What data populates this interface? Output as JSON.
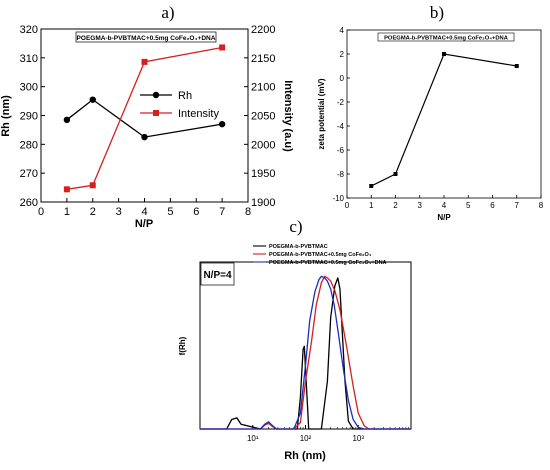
{
  "chart_data": [
    {
      "panel": "a)",
      "type": "line",
      "box_title": "POEGMA-b-PVBTMAC+0.5mg CoFe₂O₄+DNA",
      "xlabel": "N/P",
      "ylabel_left": "Rh (nm)",
      "ylabel_right": "Intensity (a.u)",
      "xlim": [
        0,
        8
      ],
      "ylim_left": [
        260,
        320
      ],
      "ylim_right": [
        1900,
        2200
      ],
      "xticks": [
        "0",
        "1",
        "2",
        "3",
        "4",
        "5",
        "6",
        "7",
        "8"
      ],
      "yticks_left": [
        "260",
        "270",
        "280",
        "290",
        "300",
        "310",
        "320"
      ],
      "yticks_right": [
        "1900",
        "1950",
        "2000",
        "2050",
        "2100",
        "2150",
        "2200"
      ],
      "legend_position": "right",
      "series": [
        {
          "name": "Rh",
          "axis": "left",
          "color": "#000000",
          "marker": "circle",
          "x": [
            1,
            2,
            4,
            7
          ],
          "y": [
            288.5,
            295.5,
            282.5,
            287.0
          ]
        },
        {
          "name": "Intensity",
          "axis": "right",
          "color": "#d42020",
          "marker": "square",
          "x": [
            1,
            2,
            4,
            7
          ],
          "y": [
            1922,
            1929,
            2143,
            2168
          ]
        }
      ]
    },
    {
      "panel": "b)",
      "type": "line",
      "box_title": "POEGMA-b-PVBTMAC+0.5mg CoFe₂O₄+DNA",
      "xlabel": "N/P",
      "ylabel": "zeta potential (mV)",
      "xlim": [
        0,
        8
      ],
      "ylim": [
        -10,
        4
      ],
      "xticks": [
        "0",
        "1",
        "2",
        "3",
        "4",
        "5",
        "6",
        "7",
        "8"
      ],
      "yticks": [
        "-10",
        "-8",
        "-6",
        "-4",
        "-2",
        "0",
        "2",
        "4"
      ],
      "series": [
        {
          "color": "#000000",
          "marker": "square",
          "x": [
            1,
            2,
            4,
            7
          ],
          "y": [
            -9.0,
            -8.0,
            2.0,
            1.0
          ]
        }
      ]
    },
    {
      "panel": "c)",
      "type": "line",
      "annotation": "N/P=4",
      "xlabel": "Rh (nm)",
      "ylabel": "f(Rh)",
      "xscale": "log",
      "xlim": [
        1,
        10000
      ],
      "ylim": [
        0,
        1.05
      ],
      "xticks": [
        "10¹",
        "10²",
        "10³"
      ],
      "legend_position": "top-left",
      "series": [
        {
          "name": "POEGMA-b-PVBTMAC",
          "color": "#000000",
          "x": [
            1,
            3.2,
            4,
            5,
            6,
            14,
            17,
            20,
            23,
            28,
            70,
            80,
            90,
            95,
            105,
            115,
            130,
            160,
            200,
            260,
            300,
            360,
            410,
            450,
            500,
            560,
            650,
            800,
            1000,
            10000
          ],
          "y": [
            0,
            0,
            0.06,
            0.07,
            0.03,
            0,
            0.03,
            0.04,
            0.02,
            0,
            0,
            0.2,
            0.5,
            0.52,
            0.25,
            0,
            0,
            0,
            0,
            0.3,
            0.7,
            0.9,
            0.95,
            0.88,
            0.6,
            0.3,
            0.05,
            0,
            0,
            0
          ]
        },
        {
          "name": "POEGMA-b-PVBTMAC+0.5mg CoFe₂O₄",
          "color": "#d42020",
          "x": [
            1,
            14,
            17,
            20,
            23,
            28,
            60,
            80,
            100,
            130,
            160,
            200,
            230,
            260,
            300,
            360,
            450,
            600,
            800,
            1000,
            1300,
            1600,
            10000
          ],
          "y": [
            0,
            0,
            0.025,
            0.035,
            0.02,
            0,
            0,
            0.04,
            0.3,
            0.55,
            0.78,
            0.92,
            0.96,
            0.95,
            0.93,
            0.87,
            0.75,
            0.52,
            0.27,
            0.1,
            0.02,
            0,
            0
          ]
        },
        {
          "name": "POEGMA-b-PVBTMAC+0.5mg CoFe₂O₄+DNA",
          "color": "#1a2fbf",
          "x": [
            1,
            14,
            17,
            20,
            23,
            28,
            60,
            80,
            100,
            120,
            150,
            180,
            200,
            230,
            260,
            300,
            350,
            420,
            520,
            650,
            800,
            1000,
            1300,
            10000
          ],
          "y": [
            0,
            0,
            0.03,
            0.045,
            0.025,
            0,
            0,
            0.1,
            0.4,
            0.68,
            0.86,
            0.94,
            0.96,
            0.95,
            0.93,
            0.88,
            0.78,
            0.6,
            0.38,
            0.18,
            0.06,
            0.01,
            0,
            0
          ]
        }
      ]
    }
  ]
}
